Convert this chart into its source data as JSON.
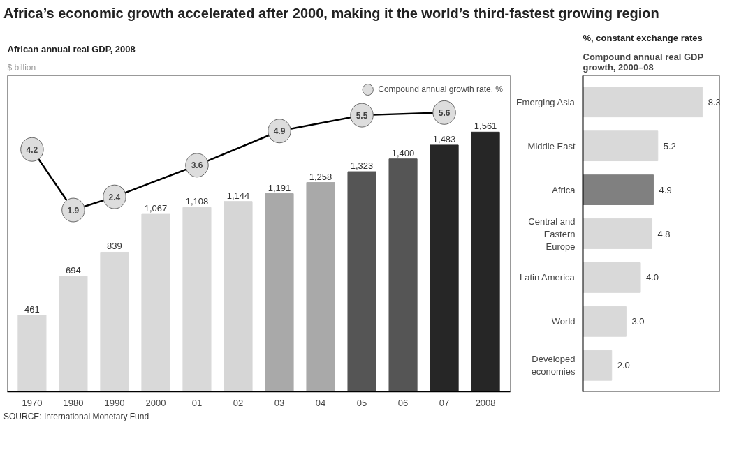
{
  "chart_data": [
    {
      "type": "bar",
      "title": "Africa’s economic growth accelerated after 2000, making it the world’s third-fastest growing region",
      "subtitle": "African annual real GDP, 2008",
      "ylabel": "$ billion",
      "categories": [
        "1970",
        "1980",
        "1990",
        "2000",
        "01",
        "02",
        "03",
        "04",
        "05",
        "06",
        "07",
        "2008"
      ],
      "ylim": [
        0,
        1900
      ],
      "y2lim": [
        -5,
        7
      ],
      "tick_labels": "x",
      "grid": false,
      "legend": "top right",
      "series": [
        {
          "type": "bar",
          "colors": [
            "#d9d9d9",
            "#d9d9d9",
            "#d9d9d9",
            "#d9d9d9",
            "#d9d9d9",
            "#d6d6d6",
            "#a9a9a9",
            "#a9a9a9",
            "#555555",
            "#555555",
            "#262626",
            "#262626"
          ],
          "values": [
            461,
            694,
            839,
            1067,
            1108,
            1144,
            1191,
            1258,
            1323,
            1400,
            1483,
            1561
          ],
          "value_labels": [
            "461",
            "694",
            "839",
            "1,067",
            "1,108",
            "1,144",
            "1,191",
            "1,258",
            "1,323",
            "1,400",
            "1,483",
            "1,561"
          ]
        },
        {
          "type": "line",
          "name": "Compound annual growth rate, %",
          "axis": "y2",
          "color": "#000000",
          "marker": "circle",
          "values": [
            4.2,
            1.9,
            2.4,
            null,
            3.6,
            null,
            4.9,
            null,
            5.5,
            null,
            5.6,
            null
          ],
          "value_labels": [
            "4.2",
            "1.9",
            "2.4",
            null,
            "3.6",
            null,
            "4.9",
            null,
            "5.5",
            null,
            "5.6",
            null
          ]
        }
      ],
      "annotations": [
        "SOURCE: International Monetary Fund"
      ]
    },
    {
      "type": "bar",
      "orientation": "horizontal",
      "title": "Compound annual real GDP growth, 2000–08",
      "subtitle": "%, constant exchange rates",
      "categories": [
        "Emerging Asia",
        "Middle East",
        "Africa",
        "Central and Eastern Europe",
        "Latin America",
        "World",
        "Developed economies"
      ],
      "values": [
        8.3,
        5.2,
        4.9,
        4.8,
        4.0,
        3.0,
        2.0
      ],
      "colors": [
        "#d9d9d9",
        "#d9d9d9",
        "#808080",
        "#d9d9d9",
        "#d9d9d9",
        "#d9d9d9",
        "#d9d9d9"
      ],
      "value_labels": [
        "8.3",
        "5.2",
        "4.9",
        "4.8",
        "4.0",
        "3.0",
        "2.0"
      ],
      "xlim": [
        0,
        9.5
      ],
      "tick_labels": "y",
      "grid": false
    }
  ]
}
